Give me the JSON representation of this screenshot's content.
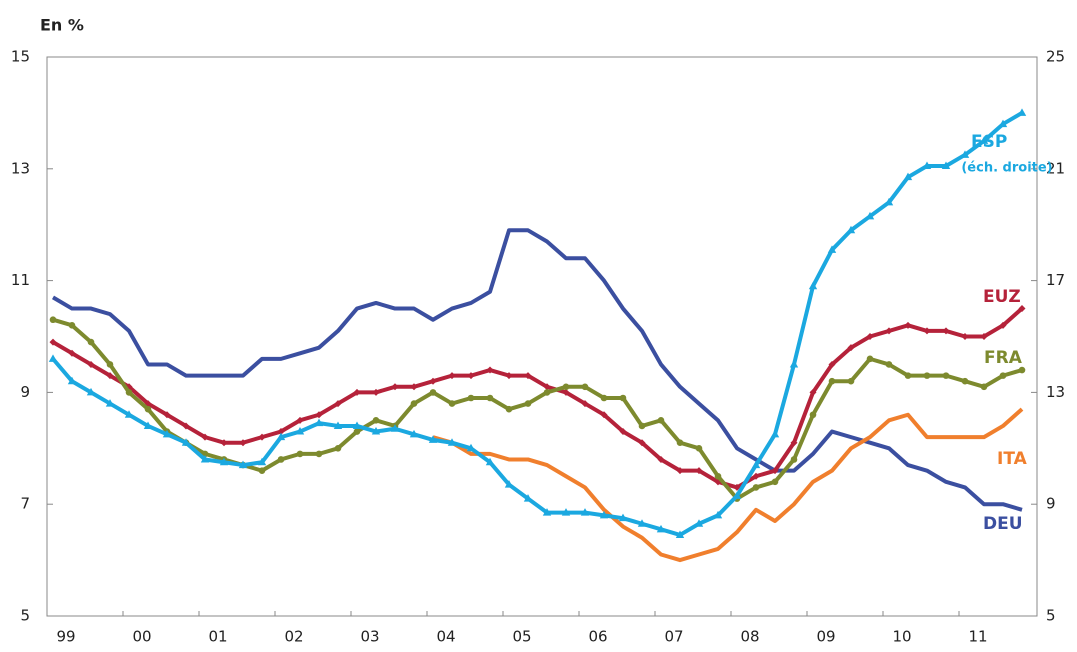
{
  "chart_data": {
    "type": "line",
    "y_label": "En %",
    "categories": [
      "99",
      null,
      null,
      null,
      "00",
      null,
      null,
      null,
      "01",
      null,
      null,
      null,
      "02",
      null,
      null,
      null,
      "03",
      null,
      null,
      null,
      "04",
      null,
      null,
      null,
      "05",
      null,
      null,
      null,
      "06",
      null,
      null,
      null,
      "07",
      null,
      null,
      null,
      "08",
      null,
      null,
      null,
      "09",
      null,
      null,
      null,
      "10",
      null,
      null,
      null,
      "11",
      null,
      null,
      null
    ],
    "ylim": [
      5,
      15
    ],
    "yticks": [
      5,
      7,
      9,
      11,
      13,
      15
    ],
    "y2lim": [
      5,
      25
    ],
    "y2ticks": [
      5,
      9,
      13,
      17,
      21,
      25
    ],
    "annotation": "(éch. droite)",
    "series": [
      {
        "name": "DEU",
        "color": "#3b4fa0",
        "marker": "none",
        "values": [
          10.7,
          10.5,
          10.5,
          10.4,
          10.1,
          9.5,
          9.5,
          9.3,
          9.3,
          9.3,
          9.3,
          9.6,
          9.6,
          9.7,
          9.8,
          10.1,
          10.5,
          10.6,
          10.5,
          10.5,
          10.3,
          10.5,
          10.6,
          10.8,
          11.9,
          11.9,
          11.7,
          11.4,
          11.4,
          11.0,
          10.5,
          10.1,
          9.5,
          9.1,
          8.8,
          8.5,
          8.0,
          7.8,
          7.6,
          7.6,
          7.9,
          8.3,
          8.2,
          8.1,
          8.0,
          7.7,
          7.6,
          7.4,
          7.3,
          7.0,
          7.0,
          6.9
        ]
      },
      {
        "name": "EUZ",
        "color": "#b5223a",
        "marker": "diamond",
        "values": [
          9.9,
          9.7,
          9.5,
          9.3,
          9.1,
          8.8,
          8.6,
          8.4,
          8.2,
          8.1,
          8.1,
          8.2,
          8.3,
          8.5,
          8.6,
          8.8,
          9.0,
          9.0,
          9.1,
          9.1,
          9.2,
          9.3,
          9.3,
          9.4,
          9.3,
          9.3,
          9.1,
          9.0,
          8.8,
          8.6,
          8.3,
          8.1,
          7.8,
          7.6,
          7.6,
          7.4,
          7.3,
          7.5,
          7.6,
          8.1,
          9.0,
          9.5,
          9.8,
          10.0,
          10.1,
          10.2,
          10.1,
          10.1,
          10.0,
          10.0,
          10.2,
          10.5
        ]
      },
      {
        "name": "FRA",
        "color": "#7d8a2e",
        "marker": "circle",
        "values": [
          10.3,
          10.2,
          9.9,
          9.5,
          9.0,
          8.7,
          8.3,
          8.1,
          7.9,
          7.8,
          7.7,
          7.6,
          7.8,
          7.9,
          7.9,
          8.0,
          8.3,
          8.5,
          8.4,
          8.8,
          9.0,
          8.8,
          8.9,
          8.9,
          8.7,
          8.8,
          9.0,
          9.1,
          9.1,
          8.9,
          8.9,
          8.4,
          8.5,
          8.1,
          8.0,
          7.5,
          7.1,
          7.3,
          7.4,
          7.8,
          8.6,
          9.2,
          9.2,
          9.6,
          9.5,
          9.3,
          9.3,
          9.3,
          9.2,
          9.1,
          9.3,
          9.4
        ]
      },
      {
        "name": "ITA",
        "color": "#f07f2d",
        "marker": "none",
        "values": [
          null,
          null,
          null,
          null,
          null,
          null,
          null,
          null,
          null,
          null,
          null,
          null,
          null,
          null,
          null,
          null,
          null,
          null,
          null,
          null,
          8.2,
          8.1,
          7.9,
          7.9,
          7.8,
          7.8,
          7.7,
          7.5,
          7.3,
          6.9,
          6.6,
          6.4,
          6.1,
          6.0,
          6.1,
          6.2,
          6.5,
          6.9,
          6.7,
          7.0,
          7.4,
          7.6,
          8.0,
          8.2,
          8.5,
          8.6,
          8.2,
          8.2,
          8.2,
          8.2,
          8.4,
          8.7
        ]
      },
      {
        "name": "ESP",
        "color": "#1ba8e0",
        "marker": "triangle",
        "axis": "y2",
        "values": [
          14.2,
          13.4,
          13.0,
          12.6,
          12.2,
          11.8,
          11.5,
          11.2,
          10.6,
          10.5,
          10.4,
          10.5,
          11.4,
          11.6,
          11.9,
          11.8,
          11.8,
          11.6,
          11.7,
          11.5,
          11.3,
          11.2,
          11.0,
          10.5,
          9.7,
          9.2,
          8.7,
          8.7,
          8.7,
          8.6,
          8.5,
          8.3,
          8.1,
          7.9,
          8.3,
          8.6,
          9.3,
          10.4,
          11.5,
          14.0,
          16.8,
          18.1,
          18.8,
          19.3,
          19.8,
          20.7,
          21.1,
          21.1,
          21.5,
          22.0,
          22.6,
          23.0
        ]
      }
    ]
  }
}
